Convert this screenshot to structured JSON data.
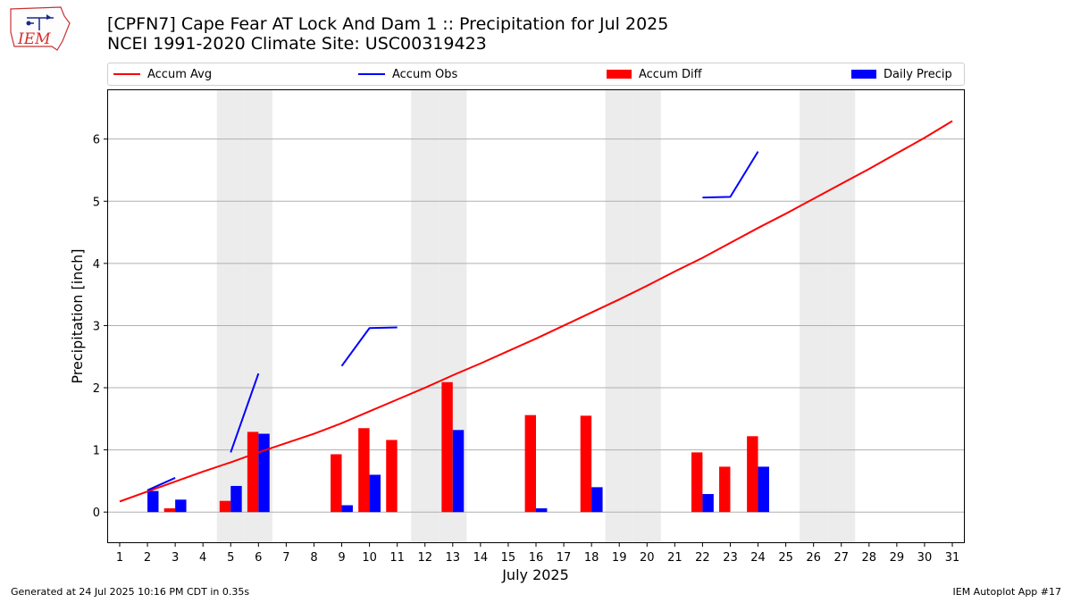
{
  "header": {
    "title_line1": "[CPFN7] Cape Fear  AT Lock And Dam 1 :: Precipitation for Jul 2025",
    "title_line2": "NCEI 1991-2020 Climate Site: USC00319423",
    "logo_text": "IEM"
  },
  "footer": {
    "generated": "Generated at 24 Jul 2025 10:16 PM CDT in 0.35s",
    "app": "IEM Autoplot App #17"
  },
  "colors": {
    "avg": "#ff0000",
    "obs": "#0000ff",
    "diff": "#ff0000",
    "daily": "#0000ff",
    "weekend": "#ececec",
    "grid": "#b0b0b0"
  },
  "chart_data": {
    "type": "bar",
    "title": "[CPFN7] Cape Fear  AT Lock And Dam 1 :: Precipitation for Jul 2025",
    "xlabel": "July 2025",
    "ylabel": "Precipitation [inch]",
    "ylim": [
      -0.5,
      6.8
    ],
    "yticks": [
      0,
      1,
      2,
      3,
      4,
      5,
      6
    ],
    "xticks": [
      "1",
      "2",
      "3",
      "4",
      "5",
      "6",
      "7",
      "8",
      "9",
      "10",
      "11",
      "12",
      "13",
      "14",
      "15",
      "16",
      "17",
      "18",
      "19",
      "20",
      "21",
      "22",
      "23",
      "24",
      "25",
      "26",
      "27",
      "28",
      "29",
      "30",
      "31"
    ],
    "grid": "horizontal",
    "legend_position": "top",
    "shaded_days": [
      5,
      6,
      12,
      13,
      19,
      20,
      26,
      27
    ],
    "series": [
      {
        "name": "Accum Avg",
        "kind": "line",
        "x": [
          1,
          2,
          3,
          4,
          5,
          6,
          7,
          8,
          9,
          10,
          11,
          12,
          13,
          14,
          15,
          16,
          17,
          18,
          19,
          20,
          21,
          22,
          23,
          24,
          25,
          26,
          27,
          28,
          29,
          30,
          31
        ],
        "values": [
          0.17,
          0.33,
          0.49,
          0.65,
          0.8,
          0.96,
          1.11,
          1.26,
          1.43,
          1.62,
          1.81,
          2.0,
          2.2,
          2.39,
          2.59,
          2.79,
          3.0,
          3.21,
          3.42,
          3.64,
          3.87,
          4.09,
          4.33,
          4.57,
          4.8,
          5.04,
          5.28,
          5.52,
          5.77,
          6.02,
          6.29
        ]
      },
      {
        "name": "Accum Obs",
        "kind": "line-segments",
        "segments": [
          {
            "x": [
              2,
              3
            ],
            "values": [
              0.35,
              0.55
            ]
          },
          {
            "x": [
              5,
              6
            ],
            "values": [
              0.96,
              2.23
            ]
          },
          {
            "x": [
              9,
              10,
              11
            ],
            "values": [
              2.35,
              2.96,
              2.97
            ]
          },
          {
            "x": [
              22,
              23,
              24
            ],
            "values": [
              5.06,
              5.07,
              5.8
            ]
          }
        ]
      },
      {
        "name": "Accum Diff",
        "kind": "bar",
        "offset": "left",
        "x": [
          3,
          5,
          6,
          9,
          10,
          11,
          13,
          16,
          18,
          22,
          23,
          24
        ],
        "values": [
          0.06,
          0.18,
          1.29,
          0.93,
          1.35,
          1.16,
          2.09,
          1.56,
          1.55,
          0.96,
          0.73,
          1.22
        ]
      },
      {
        "name": "Daily Precip",
        "kind": "bar",
        "offset": "right",
        "x": [
          2,
          3,
          5,
          6,
          9,
          10,
          13,
          16,
          18,
          22,
          24
        ],
        "values": [
          0.34,
          0.2,
          0.42,
          1.26,
          0.11,
          0.6,
          1.32,
          0.06,
          0.4,
          0.29,
          0.73
        ]
      }
    ]
  },
  "legend": {
    "items": [
      {
        "label": "Accum Avg",
        "kind": "line",
        "color": "#ff0000"
      },
      {
        "label": "Accum Obs",
        "kind": "line",
        "color": "#0000ff"
      },
      {
        "label": "Accum Diff",
        "kind": "bar",
        "color": "#ff0000"
      },
      {
        "label": "Daily Precip",
        "kind": "bar",
        "color": "#0000ff"
      }
    ]
  }
}
